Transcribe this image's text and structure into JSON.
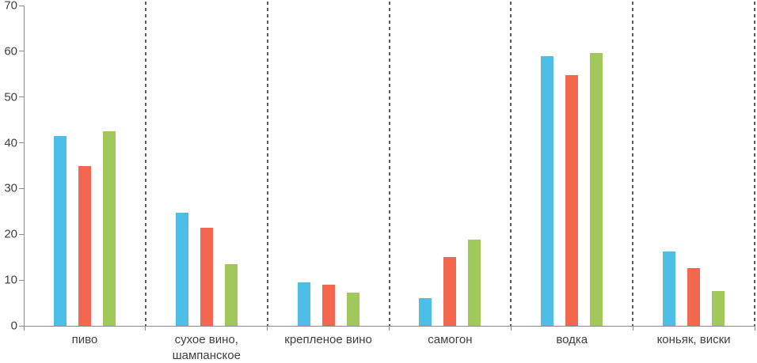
{
  "chart_data": {
    "type": "bar",
    "title": "",
    "xlabel": "",
    "ylabel": "",
    "ylim": [
      0,
      70
    ],
    "yticks": [
      0,
      10,
      20,
      30,
      40,
      50,
      60,
      70
    ],
    "legend": "none",
    "grid": "vertical dashed separators between categories",
    "categories": [
      "пиво",
      "сухое вино, шампанское",
      "крепленое вино",
      "самогон",
      "водка",
      "коньяк, виски"
    ],
    "series": [
      {
        "name": "series-blue",
        "color": "#4FBEE7",
        "values": [
          41.5,
          24.8,
          9.5,
          6.0,
          59.0,
          16.3
        ]
      },
      {
        "name": "series-red",
        "color": "#F2674D",
        "values": [
          35.0,
          21.5,
          9.0,
          15.0,
          54.8,
          12.6
        ]
      },
      {
        "name": "series-green",
        "color": "#A0C85A",
        "values": [
          42.5,
          13.5,
          7.3,
          18.8,
          59.6,
          7.6
        ]
      }
    ]
  },
  "colors": {
    "background": "#FFFFFF",
    "axis": "#8C8C8C",
    "separator": "#595959",
    "tick_label": "#404040"
  }
}
